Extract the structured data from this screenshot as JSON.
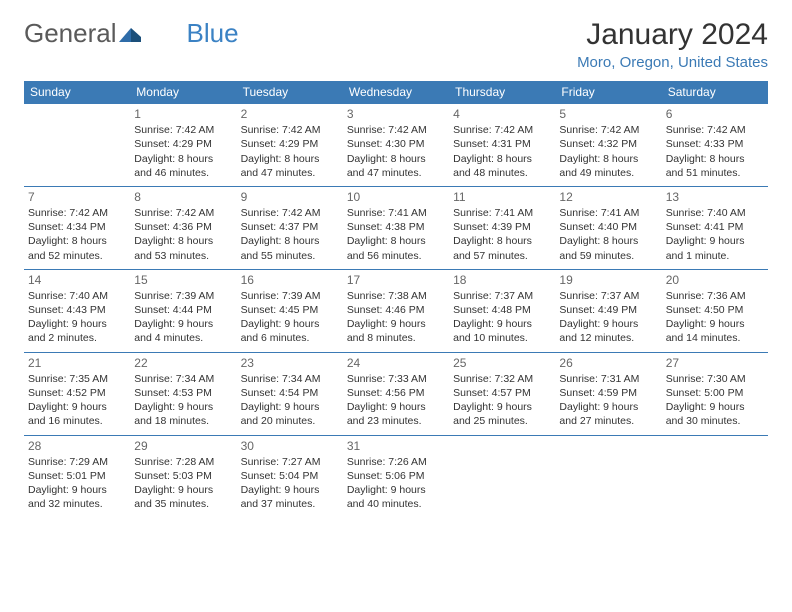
{
  "logo": {
    "text1": "General",
    "text2": "Blue"
  },
  "title": "January 2024",
  "location": "Moro, Oregon, United States",
  "colors": {
    "header_bg": "#3b7ab5",
    "header_text": "#ffffff",
    "border": "#3b7ab5",
    "day_num": "#666666",
    "body_text": "#333333",
    "location_text": "#3b7ab5",
    "logo_gray": "#5a5a5a",
    "logo_blue": "#3b82c4"
  },
  "weekdays": [
    "Sunday",
    "Monday",
    "Tuesday",
    "Wednesday",
    "Thursday",
    "Friday",
    "Saturday"
  ],
  "start_offset": 1,
  "days": [
    {
      "n": 1,
      "sunrise": "7:42 AM",
      "sunset": "4:29 PM",
      "daylight": "8 hours and 46 minutes."
    },
    {
      "n": 2,
      "sunrise": "7:42 AM",
      "sunset": "4:29 PM",
      "daylight": "8 hours and 47 minutes."
    },
    {
      "n": 3,
      "sunrise": "7:42 AM",
      "sunset": "4:30 PM",
      "daylight": "8 hours and 47 minutes."
    },
    {
      "n": 4,
      "sunrise": "7:42 AM",
      "sunset": "4:31 PM",
      "daylight": "8 hours and 48 minutes."
    },
    {
      "n": 5,
      "sunrise": "7:42 AM",
      "sunset": "4:32 PM",
      "daylight": "8 hours and 49 minutes."
    },
    {
      "n": 6,
      "sunrise": "7:42 AM",
      "sunset": "4:33 PM",
      "daylight": "8 hours and 51 minutes."
    },
    {
      "n": 7,
      "sunrise": "7:42 AM",
      "sunset": "4:34 PM",
      "daylight": "8 hours and 52 minutes."
    },
    {
      "n": 8,
      "sunrise": "7:42 AM",
      "sunset": "4:36 PM",
      "daylight": "8 hours and 53 minutes."
    },
    {
      "n": 9,
      "sunrise": "7:42 AM",
      "sunset": "4:37 PM",
      "daylight": "8 hours and 55 minutes."
    },
    {
      "n": 10,
      "sunrise": "7:41 AM",
      "sunset": "4:38 PM",
      "daylight": "8 hours and 56 minutes."
    },
    {
      "n": 11,
      "sunrise": "7:41 AM",
      "sunset": "4:39 PM",
      "daylight": "8 hours and 57 minutes."
    },
    {
      "n": 12,
      "sunrise": "7:41 AM",
      "sunset": "4:40 PM",
      "daylight": "8 hours and 59 minutes."
    },
    {
      "n": 13,
      "sunrise": "7:40 AM",
      "sunset": "4:41 PM",
      "daylight": "9 hours and 1 minute."
    },
    {
      "n": 14,
      "sunrise": "7:40 AM",
      "sunset": "4:43 PM",
      "daylight": "9 hours and 2 minutes."
    },
    {
      "n": 15,
      "sunrise": "7:39 AM",
      "sunset": "4:44 PM",
      "daylight": "9 hours and 4 minutes."
    },
    {
      "n": 16,
      "sunrise": "7:39 AM",
      "sunset": "4:45 PM",
      "daylight": "9 hours and 6 minutes."
    },
    {
      "n": 17,
      "sunrise": "7:38 AM",
      "sunset": "4:46 PM",
      "daylight": "9 hours and 8 minutes."
    },
    {
      "n": 18,
      "sunrise": "7:37 AM",
      "sunset": "4:48 PM",
      "daylight": "9 hours and 10 minutes."
    },
    {
      "n": 19,
      "sunrise": "7:37 AM",
      "sunset": "4:49 PM",
      "daylight": "9 hours and 12 minutes."
    },
    {
      "n": 20,
      "sunrise": "7:36 AM",
      "sunset": "4:50 PM",
      "daylight": "9 hours and 14 minutes."
    },
    {
      "n": 21,
      "sunrise": "7:35 AM",
      "sunset": "4:52 PM",
      "daylight": "9 hours and 16 minutes."
    },
    {
      "n": 22,
      "sunrise": "7:34 AM",
      "sunset": "4:53 PM",
      "daylight": "9 hours and 18 minutes."
    },
    {
      "n": 23,
      "sunrise": "7:34 AM",
      "sunset": "4:54 PM",
      "daylight": "9 hours and 20 minutes."
    },
    {
      "n": 24,
      "sunrise": "7:33 AM",
      "sunset": "4:56 PM",
      "daylight": "9 hours and 23 minutes."
    },
    {
      "n": 25,
      "sunrise": "7:32 AM",
      "sunset": "4:57 PM",
      "daylight": "9 hours and 25 minutes."
    },
    {
      "n": 26,
      "sunrise": "7:31 AM",
      "sunset": "4:59 PM",
      "daylight": "9 hours and 27 minutes."
    },
    {
      "n": 27,
      "sunrise": "7:30 AM",
      "sunset": "5:00 PM",
      "daylight": "9 hours and 30 minutes."
    },
    {
      "n": 28,
      "sunrise": "7:29 AM",
      "sunset": "5:01 PM",
      "daylight": "9 hours and 32 minutes."
    },
    {
      "n": 29,
      "sunrise": "7:28 AM",
      "sunset": "5:03 PM",
      "daylight": "9 hours and 35 minutes."
    },
    {
      "n": 30,
      "sunrise": "7:27 AM",
      "sunset": "5:04 PM",
      "daylight": "9 hours and 37 minutes."
    },
    {
      "n": 31,
      "sunrise": "7:26 AM",
      "sunset": "5:06 PM",
      "daylight": "9 hours and 40 minutes."
    }
  ],
  "labels": {
    "sunrise": "Sunrise: ",
    "sunset": "Sunset: ",
    "daylight": "Daylight: "
  }
}
